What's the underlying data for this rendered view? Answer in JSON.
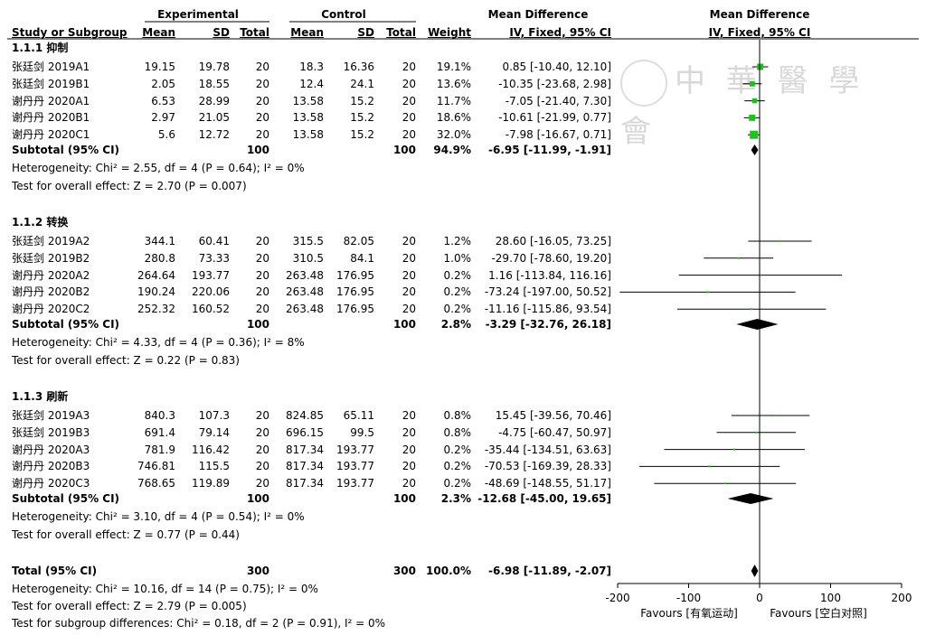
{
  "colors": {
    "square": "#1bc41b",
    "line": "#000000",
    "diamond": "#000000"
  },
  "header": {
    "experimental": "Experimental",
    "control": "Control",
    "md_top": "Mean Difference",
    "md_top_right": "Mean Difference",
    "study_col": "Study or Subgroup",
    "mean_e": "Mean",
    "sd_e": "SD",
    "total_e": "Total",
    "mean_c": "Mean",
    "sd_c": "SD",
    "total_c": "Total",
    "weight": "Weight",
    "ci_col": "IV, Fixed, 95% CI",
    "ci_col_right": "IV, Fixed, 95% CI"
  },
  "watermark": "中 華 醫 學 會",
  "groups": [
    {
      "title": "1.1.1 抑制",
      "studies": [
        {
          "name": "张廷剑 2019A1",
          "mean_e": "19.15",
          "sd_e": "19.78",
          "n_e": "20",
          "mean_c": "18.3",
          "sd_c": "16.36",
          "n_c": "20",
          "weight": "19.1%",
          "ci": "0.85 [-10.40, 12.10]"
        },
        {
          "name": "张廷剑 2019B1",
          "mean_e": "2.05",
          "sd_e": "18.55",
          "n_e": "20",
          "mean_c": "12.4",
          "sd_c": "24.1",
          "n_c": "20",
          "weight": "13.6%",
          "ci": "-10.35 [-23.68, 2.98]"
        },
        {
          "name": "谢丹丹 2020A1",
          "mean_e": "6.53",
          "sd_e": "28.99",
          "n_e": "20",
          "mean_c": "13.58",
          "sd_c": "15.2",
          "n_c": "20",
          "weight": "11.7%",
          "ci": "-7.05 [-21.40, 7.30]"
        },
        {
          "name": "谢丹丹 2020B1",
          "mean_e": "2.97",
          "sd_e": "21.05",
          "n_e": "20",
          "mean_c": "13.58",
          "sd_c": "15.2",
          "n_c": "20",
          "weight": "18.6%",
          "ci": "-10.61 [-21.99, 0.77]"
        },
        {
          "name": "谢丹丹 2020C1",
          "mean_e": "5.6",
          "sd_e": "12.72",
          "n_e": "20",
          "mean_c": "13.58",
          "sd_c": "15.2",
          "n_c": "20",
          "weight": "32.0%",
          "ci": "-7.98 [-16.67, 0.71]"
        }
      ],
      "subtotal": {
        "label": "Subtotal (95% CI)",
        "n_e": "100",
        "n_c": "100",
        "weight": "94.9%",
        "ci": "-6.95 [-11.99, -1.91]"
      },
      "heterogeneity": "Heterogeneity: Chi² = 2.55, df = 4 (P = 0.64); I² = 0%",
      "overall": "Test for overall effect: Z = 2.70 (P = 0.007)"
    },
    {
      "title": "1.1.2 转换",
      "studies": [
        {
          "name": "张廷剑 2019A2",
          "mean_e": "344.1",
          "sd_e": "60.41",
          "n_e": "20",
          "mean_c": "315.5",
          "sd_c": "82.05",
          "n_c": "20",
          "weight": "1.2%",
          "ci": "28.60 [-16.05, 73.25]"
        },
        {
          "name": "张廷剑 2019B2",
          "mean_e": "280.8",
          "sd_e": "73.33",
          "n_e": "20",
          "mean_c": "310.5",
          "sd_c": "84.1",
          "n_c": "20",
          "weight": "1.0%",
          "ci": "-29.70 [-78.60, 19.20]"
        },
        {
          "name": "谢丹丹 2020A2",
          "mean_e": "264.64",
          "sd_e": "193.77",
          "n_e": "20",
          "mean_c": "263.48",
          "sd_c": "176.95",
          "n_c": "20",
          "weight": "0.2%",
          "ci": "1.16 [-113.84, 116.16]"
        },
        {
          "name": "谢丹丹 2020B2",
          "mean_e": "190.24",
          "sd_e": "220.06",
          "n_e": "20",
          "mean_c": "263.48",
          "sd_c": "176.95",
          "n_c": "20",
          "weight": "0.2%",
          "ci": "-73.24 [-197.00, 50.52]"
        },
        {
          "name": "谢丹丹 2020C2",
          "mean_e": "252.32",
          "sd_e": "160.52",
          "n_e": "20",
          "mean_c": "263.48",
          "sd_c": "176.95",
          "n_c": "20",
          "weight": "0.2%",
          "ci": "-11.16 [-115.86, 93.54]"
        }
      ],
      "subtotal": {
        "label": "Subtotal (95% CI)",
        "n_e": "100",
        "n_c": "100",
        "weight": "2.8%",
        "ci": "-3.29 [-32.76, 26.18]"
      },
      "heterogeneity": "Heterogeneity: Chi² = 4.33, df = 4 (P = 0.36); I² = 8%",
      "overall": "Test for overall effect: Z = 0.22 (P = 0.83)"
    },
    {
      "title": "1.1.3 刷新",
      "studies": [
        {
          "name": "张廷剑 2019A3",
          "mean_e": "840.3",
          "sd_e": "107.3",
          "n_e": "20",
          "mean_c": "824.85",
          "sd_c": "65.11",
          "n_c": "20",
          "weight": "0.8%",
          "ci": "15.45 [-39.56, 70.46]"
        },
        {
          "name": "张廷剑 2019B3",
          "mean_e": "691.4",
          "sd_e": "79.14",
          "n_e": "20",
          "mean_c": "696.15",
          "sd_c": "99.5",
          "n_c": "20",
          "weight": "0.8%",
          "ci": "-4.75 [-60.47, 50.97]"
        },
        {
          "name": "谢丹丹 2020A3",
          "mean_e": "781.9",
          "sd_e": "116.42",
          "n_e": "20",
          "mean_c": "817.34",
          "sd_c": "193.77",
          "n_c": "20",
          "weight": "0.2%",
          "ci": "-35.44 [-134.51, 63.63]"
        },
        {
          "name": "谢丹丹 2020B3",
          "mean_e": "746.81",
          "sd_e": "115.5",
          "n_e": "20",
          "mean_c": "817.34",
          "sd_c": "193.77",
          "n_c": "20",
          "weight": "0.2%",
          "ci": "-70.53 [-169.39, 28.33]"
        },
        {
          "name": "谢丹丹 2020C3",
          "mean_e": "768.65",
          "sd_e": "119.89",
          "n_e": "20",
          "mean_c": "817.34",
          "sd_c": "193.77",
          "n_c": "20",
          "weight": "0.2%",
          "ci": "-48.69 [-148.55, 51.17]"
        }
      ],
      "subtotal": {
        "label": "Subtotal (95% CI)",
        "n_e": "100",
        "n_c": "100",
        "weight": "2.3%",
        "ci": "-12.68 [-45.00, 19.65]"
      },
      "heterogeneity": "Heterogeneity: Chi² = 3.10, df = 4 (P = 0.54); I² = 0%",
      "overall": "Test for overall effect: Z = 0.77 (P = 0.44)"
    }
  ],
  "total": {
    "label": "Total (95% CI)",
    "n_e": "300",
    "n_c": "300",
    "weight": "100.0%",
    "ci": "-6.98 [-11.89, -2.07]"
  },
  "footer": {
    "heterogeneity": "Heterogeneity: Chi² = 10.16, df = 14 (P = 0.75); I² = 0%",
    "overall": "Test for overall effect: Z = 2.79 (P = 0.005)",
    "subgroup": "Test for subgroup differences: Chi² = 0.18, df = 2 (P = 0.91), I² = 0%"
  },
  "axis": {
    "ticks": [
      "-200",
      "-100",
      "0",
      "100",
      "200"
    ],
    "favours_left": "Favours [有氧运动]",
    "favours_right": "Favours [空白对照]"
  },
  "chart_data": {
    "type": "forest",
    "xlim": [
      -200,
      200
    ],
    "ticks": [
      -200,
      -100,
      0,
      100,
      200
    ],
    "null_line": 0,
    "studies": [
      {
        "group": "1.1.1 抑制",
        "name": "张廷剑 2019A1",
        "md": 0.85,
        "lo": -10.4,
        "hi": 12.1,
        "weight": 19.1
      },
      {
        "group": "1.1.1 抑制",
        "name": "张廷剑 2019B1",
        "md": -10.35,
        "lo": -23.68,
        "hi": 2.98,
        "weight": 13.6
      },
      {
        "group": "1.1.1 抑制",
        "name": "谢丹丹 2020A1",
        "md": -7.05,
        "lo": -21.4,
        "hi": 7.3,
        "weight": 11.7
      },
      {
        "group": "1.1.1 抑制",
        "name": "谢丹丹 2020B1",
        "md": -10.61,
        "lo": -21.99,
        "hi": 0.77,
        "weight": 18.6
      },
      {
        "group": "1.1.1 抑制",
        "name": "谢丹丹 2020C1",
        "md": -7.98,
        "lo": -16.67,
        "hi": 0.71,
        "weight": 32.0
      },
      {
        "group": "1.1.2 转换",
        "name": "张廷剑 2019A2",
        "md": 28.6,
        "lo": -16.05,
        "hi": 73.25,
        "weight": 1.2
      },
      {
        "group": "1.1.2 转换",
        "name": "张廷剑 2019B2",
        "md": -29.7,
        "lo": -78.6,
        "hi": 19.2,
        "weight": 1.0
      },
      {
        "group": "1.1.2 转换",
        "name": "谢丹丹 2020A2",
        "md": 1.16,
        "lo": -113.84,
        "hi": 116.16,
        "weight": 0.2
      },
      {
        "group": "1.1.2 转换",
        "name": "谢丹丹 2020B2",
        "md": -73.24,
        "lo": -197.0,
        "hi": 50.52,
        "weight": 0.2
      },
      {
        "group": "1.1.2 转换",
        "name": "谢丹丹 2020C2",
        "md": -11.16,
        "lo": -115.86,
        "hi": 93.54,
        "weight": 0.2
      },
      {
        "group": "1.1.3 刷新",
        "name": "张廷剑 2019A3",
        "md": 15.45,
        "lo": -39.56,
        "hi": 70.46,
        "weight": 0.8
      },
      {
        "group": "1.1.3 刷新",
        "name": "张廷剑 2019B3",
        "md": -4.75,
        "lo": -60.47,
        "hi": 50.97,
        "weight": 0.8
      },
      {
        "group": "1.1.3 刷新",
        "name": "谢丹丹 2020A3",
        "md": -35.44,
        "lo": -134.51,
        "hi": 63.63,
        "weight": 0.2
      },
      {
        "group": "1.1.3 刷新",
        "name": "谢丹丹 2020B3",
        "md": -70.53,
        "lo": -169.39,
        "hi": 28.33,
        "weight": 0.2
      },
      {
        "group": "1.1.3 刷新",
        "name": "谢丹丹 2020C3",
        "md": -48.69,
        "lo": -148.55,
        "hi": 51.17,
        "weight": 0.2
      }
    ],
    "subtotals": [
      {
        "group": "1.1.1 抑制",
        "md": -6.95,
        "lo": -11.99,
        "hi": -1.91
      },
      {
        "group": "1.1.2 转换",
        "md": -3.29,
        "lo": -32.76,
        "hi": 26.18
      },
      {
        "group": "1.1.3 刷新",
        "md": -12.68,
        "lo": -45.0,
        "hi": 19.65
      }
    ],
    "total": {
      "md": -6.98,
      "lo": -11.89,
      "hi": -2.07
    }
  }
}
